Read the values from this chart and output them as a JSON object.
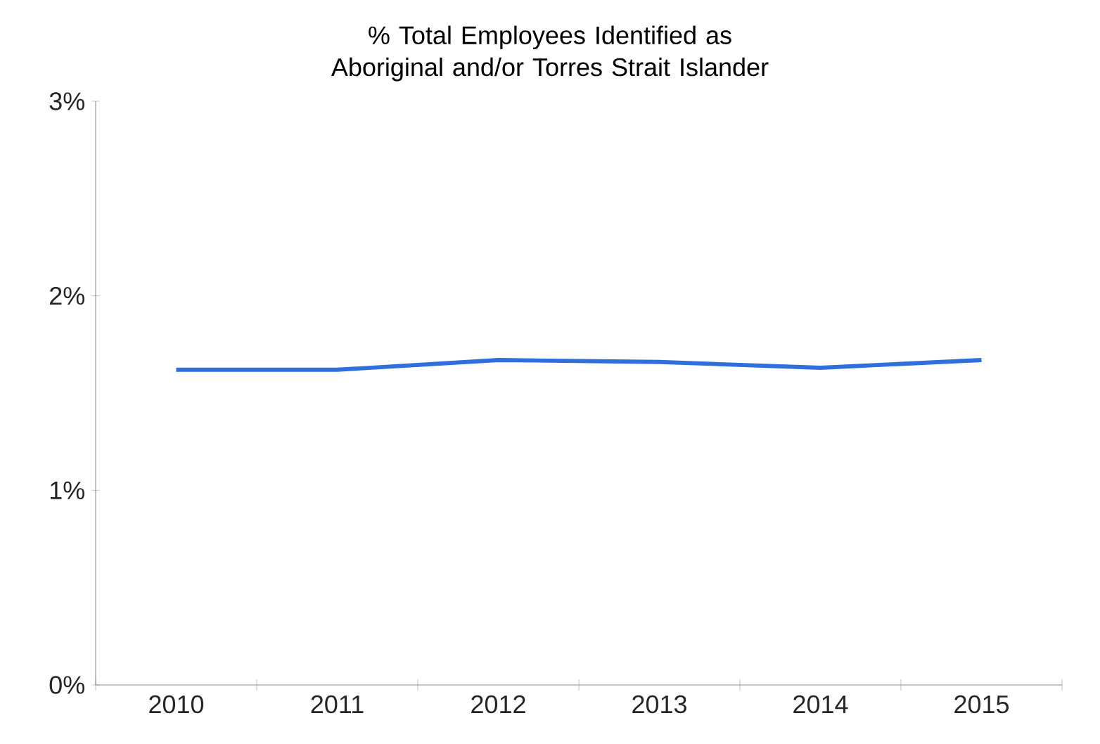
{
  "chart_data": {
    "type": "line",
    "title": "% Total Employees Identified as Aboriginal and/or Torres Strait Islander",
    "categories": [
      "2010",
      "2011",
      "2012",
      "2013",
      "2014",
      "2015"
    ],
    "series": [
      {
        "color": "#2e6fdc",
        "values": [
          1.62,
          1.62,
          1.67,
          1.66,
          1.63,
          1.67
        ]
      }
    ],
    "ylim": [
      0,
      3
    ],
    "yticks": [
      {
        "value": 0,
        "label": "0%"
      },
      {
        "value": 1,
        "label": "1%"
      },
      {
        "value": 2,
        "label": "2%"
      },
      {
        "value": 3,
        "label": "3%"
      }
    ],
    "grid": false,
    "marker": "none",
    "line_style": "solid"
  }
}
